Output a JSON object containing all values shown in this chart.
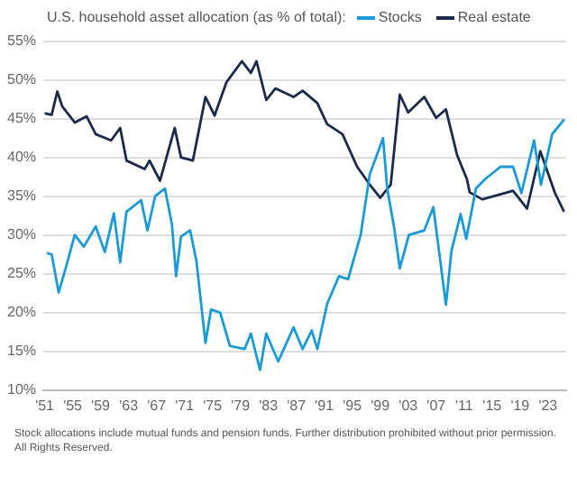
{
  "chart_data": {
    "type": "line",
    "title": "U.S. household asset allocation (as % of total):",
    "annotations": [
      "Stock allocations include mutual funds and pension funds. Further distribution prohibited without prior permission. All Rights Reserved."
    ],
    "legend": "top",
    "grid": "y",
    "marker": "none",
    "line_style": "solid",
    "xlim": [
      1950.8,
      2025.6
    ],
    "xticks": [
      {
        "value": 1951,
        "label": "'51"
      },
      {
        "value": 1955,
        "label": "'55"
      },
      {
        "value": 1959,
        "label": "'59"
      },
      {
        "value": 1963,
        "label": "'63"
      },
      {
        "value": 1967,
        "label": "'67"
      },
      {
        "value": 1971,
        "label": "'71"
      },
      {
        "value": 1975,
        "label": "'75"
      },
      {
        "value": 1979,
        "label": "'79"
      },
      {
        "value": 1983,
        "label": "'83"
      },
      {
        "value": 1987,
        "label": "'87"
      },
      {
        "value": 1991,
        "label": "'91"
      },
      {
        "value": 1995,
        "label": "'95"
      },
      {
        "value": 1999,
        "label": "'99"
      },
      {
        "value": 2003,
        "label": "'03"
      },
      {
        "value": 2007,
        "label": "'07"
      },
      {
        "value": 2011,
        "label": "'11"
      },
      {
        "value": 2015,
        "label": "'15"
      },
      {
        "value": 2019,
        "label": "'19"
      },
      {
        "value": 2023,
        "label": "'23"
      }
    ],
    "ylim": [
      10,
      55
    ],
    "yticks": [
      {
        "value": 10,
        "label": "10%"
      },
      {
        "value": 15,
        "label": "15%"
      },
      {
        "value": 20,
        "label": "20%"
      },
      {
        "value": 25,
        "label": "25%"
      },
      {
        "value": 30,
        "label": "30%"
      },
      {
        "value": 35,
        "label": "35%"
      },
      {
        "value": 40,
        "label": "40%"
      },
      {
        "value": 45,
        "label": "45%"
      },
      {
        "value": 50,
        "label": "50%"
      },
      {
        "value": 55,
        "label": "55%"
      }
    ],
    "series": [
      {
        "name": "Stocks",
        "color": "#1a9ad6",
        "x": [
          1951.3,
          1952,
          1953,
          1954,
          1955.3,
          1956.6,
          1958.3,
          1959.6,
          1960.9,
          1961.8,
          1962.7,
          1964.8,
          1965.7,
          1966.8,
          1968.2,
          1969.2,
          1969.8,
          1970.5,
          1971.8,
          1972.7,
          1974,
          1974.8,
          1976.1,
          1977.5,
          1979.6,
          1980.5,
          1981.8,
          1982.7,
          1984.4,
          1986.6,
          1987.9,
          1989.2,
          1990,
          1991.4,
          1993.1,
          1994.4,
          1996.2,
          1997.2,
          1997.5,
          1999.4,
          2000,
          2001,
          2001.8,
          2003.1,
          2005.3,
          2006.6,
          2008.4,
          2009.2,
          2010.5,
          2011.3,
          2012.7,
          2014,
          2016.2,
          2018,
          2019.2,
          2021,
          2022,
          2023.6,
          2025.3
        ],
        "values": [
          27.7,
          27.5,
          22.6,
          25.7,
          30,
          28.5,
          31.1,
          27.8,
          32.8,
          26.5,
          33,
          34.5,
          30.6,
          35,
          36,
          31.4,
          24.7,
          29.8,
          30.6,
          26.7,
          16.1,
          20.4,
          20,
          15.7,
          15.3,
          17.3,
          12.6,
          17.3,
          13.7,
          18.1,
          15.3,
          17.7,
          15.3,
          21.1,
          24.7,
          24.3,
          30,
          36,
          37.8,
          42.5,
          36,
          30.9,
          25.7,
          30,
          30.6,
          33.6,
          21,
          28,
          32.7,
          29.5,
          36,
          37.2,
          38.8,
          38.8,
          35.4,
          42.2,
          36.5,
          43,
          44.9
        ]
      },
      {
        "name": "Real estate",
        "color": "#1b2a4a",
        "x": [
          1951,
          1952,
          1952.8,
          1953.5,
          1955.3,
          1957,
          1958.3,
          1960.5,
          1961.8,
          1962.7,
          1965.3,
          1966,
          1967.5,
          1969.6,
          1970.5,
          1972.2,
          1974,
          1975.3,
          1977,
          1979.2,
          1980.5,
          1981.3,
          1982.7,
          1984,
          1986.6,
          1987.9,
          1990,
          1991.4,
          1993.6,
          1995.7,
          1997.5,
          1999,
          2000.5,
          2001.8,
          2003,
          2005.3,
          2007,
          2008.4,
          2010,
          2011.4,
          2011.8,
          2013.6,
          2018,
          2020,
          2021.9,
          2024,
          2025.3
        ],
        "values": [
          45.7,
          45.5,
          48.5,
          46.6,
          44.5,
          45.3,
          43,
          42.2,
          43.8,
          39.6,
          38.5,
          39.6,
          37,
          43.8,
          40,
          39.6,
          47.8,
          45.4,
          49.7,
          52.4,
          50.9,
          52.4,
          47.4,
          48.9,
          47.8,
          48.6,
          47,
          44.3,
          43,
          38.8,
          36.5,
          34.8,
          36.5,
          48.1,
          45.8,
          47.8,
          45.1,
          46.2,
          40.3,
          37.2,
          35.5,
          34.6,
          35.7,
          33.4,
          40.8,
          35.4,
          33
        ]
      }
    ]
  }
}
